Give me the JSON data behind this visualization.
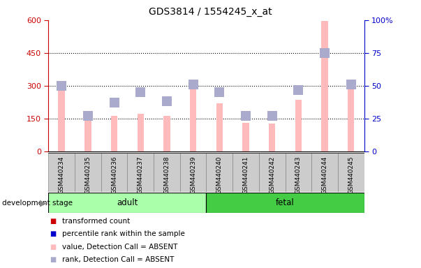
{
  "title": "GDS3814 / 1554245_x_at",
  "samples": [
    "GSM440234",
    "GSM440235",
    "GSM440236",
    "GSM440237",
    "GSM440238",
    "GSM440239",
    "GSM440240",
    "GSM440241",
    "GSM440242",
    "GSM440243",
    "GSM440244",
    "GSM440245"
  ],
  "pink_values": [
    300,
    140,
    162,
    172,
    162,
    305,
    220,
    130,
    128,
    235,
    595,
    315
  ],
  "blue_values": [
    50,
    27,
    37,
    45,
    38,
    51,
    45,
    27,
    27,
    47,
    75,
    51
  ],
  "left_ylim": [
    0,
    600
  ],
  "right_ylim": [
    0,
    100
  ],
  "left_yticks": [
    0,
    150,
    300,
    450,
    600
  ],
  "right_yticks": [
    0,
    25,
    50,
    75,
    100
  ],
  "right_yticklabels": [
    "0",
    "25",
    "50",
    "75",
    "100%"
  ],
  "left_tick_color": "#cc0000",
  "right_tick_color": "#0000cc",
  "bar_color_pink": "#ffbbbb",
  "bar_color_blue": "#aaaacc",
  "adult_color": "#aaffaa",
  "fetal_color": "#44cc44",
  "dev_stage_label": "development stage",
  "grid_color": "black",
  "legend_items": [
    {
      "label": "transformed count",
      "color": "#cc0000"
    },
    {
      "label": "percentile rank within the sample",
      "color": "#0000cc"
    },
    {
      "label": "value, Detection Call = ABSENT",
      "color": "#ffbbbb"
    },
    {
      "label": "rank, Detection Call = ABSENT",
      "color": "#aaaacc"
    }
  ],
  "bar_width": 0.25,
  "blue_marker_size": 6,
  "sample_area_bg": "#cccccc",
  "plot_bg": "white"
}
